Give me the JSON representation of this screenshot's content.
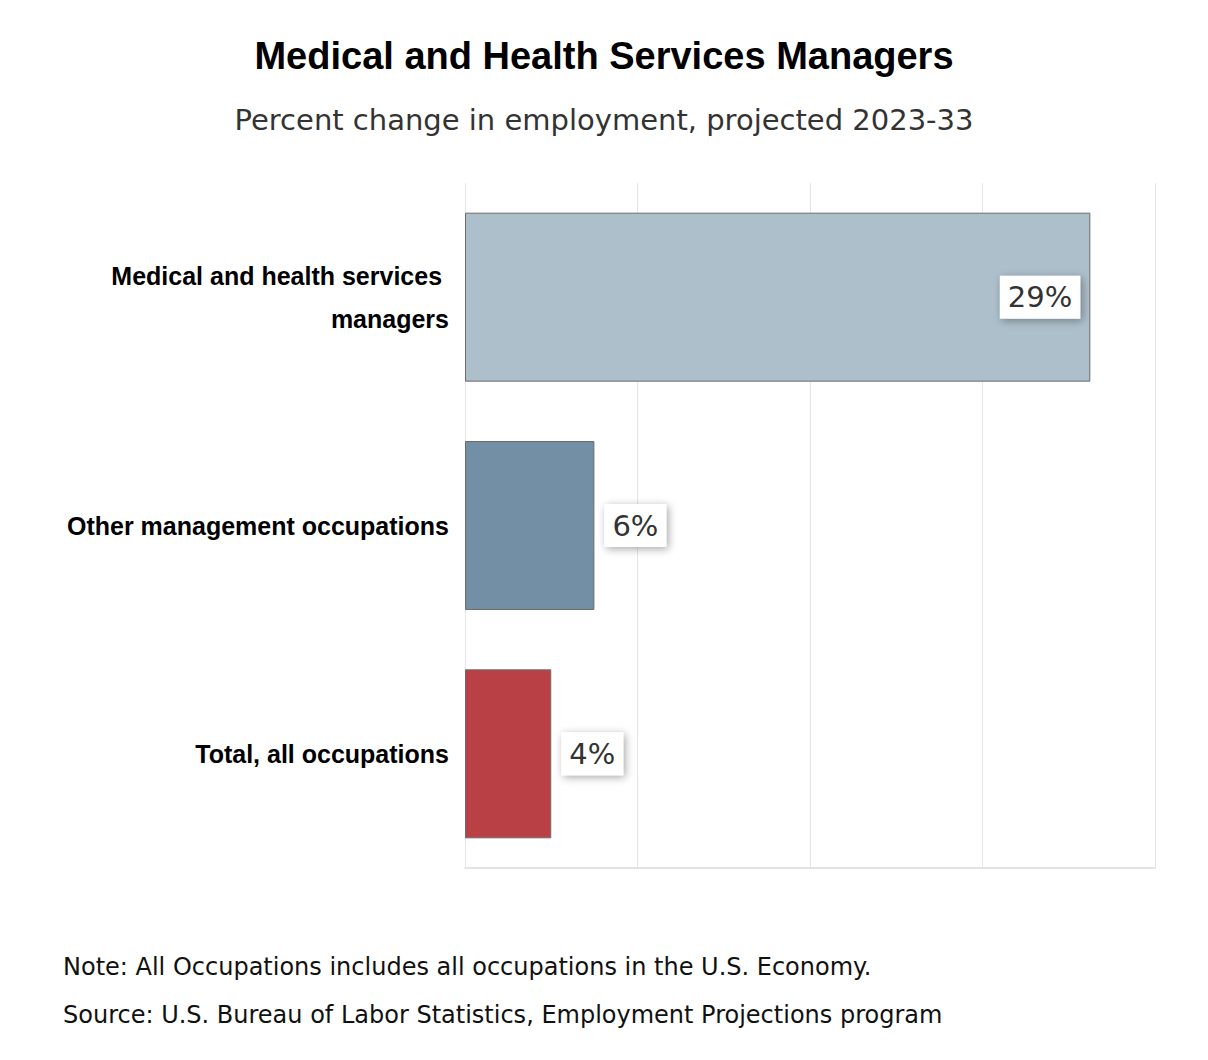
{
  "chart_data": {
    "type": "bar",
    "title": "Medical and Health Services Managers",
    "subtitle": "Percent change in employment, projected 2023-33",
    "categories": [
      "Medical and health services managers",
      "Other management occupations",
      "Total, all occupations"
    ],
    "values": [
      29,
      6,
      4
    ],
    "value_labels": [
      "29%",
      "6%",
      "4%"
    ],
    "colors": [
      "#adbfcb",
      "#738fa5",
      "#b94045"
    ],
    "orientation": "horizontal",
    "xlim": [
      0,
      32
    ],
    "xticks": [
      0,
      8,
      16,
      24,
      32
    ],
    "grid": true,
    "data_labels": true,
    "tick_labels": "y",
    "annotations": [
      "Note: All Occupations includes all occupations in the U.S. Economy.",
      "Source: U.S. Bureau of Labor Statistics, Employment Projections program"
    ]
  }
}
